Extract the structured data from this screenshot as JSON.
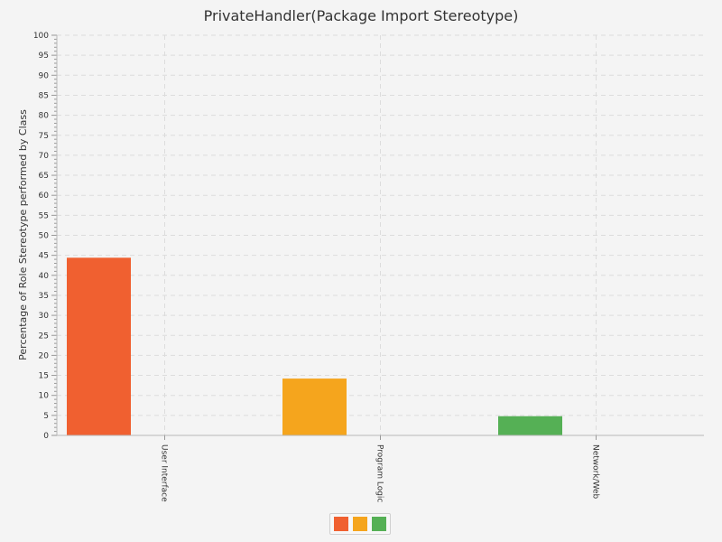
{
  "chart_data": {
    "type": "bar",
    "title": "PrivateHandler(Package Import Stereotype)",
    "xlabel": "",
    "ylabel": "Percentage of Role Stereotype performed by Class",
    "categories": [
      "User Interface",
      "Program Logic",
      "Network/Web"
    ],
    "series": [
      {
        "values": [
          44.4,
          0,
          0
        ],
        "color": "#f06030"
      },
      {
        "values": [
          0,
          14.2,
          0
        ],
        "color": "#f5a51d"
      },
      {
        "values": [
          0,
          0,
          4.8
        ],
        "color": "#55b055"
      }
    ],
    "ylim": [
      0,
      100
    ],
    "ytick_step": 5,
    "grid": true,
    "legend": "bottom-center"
  }
}
